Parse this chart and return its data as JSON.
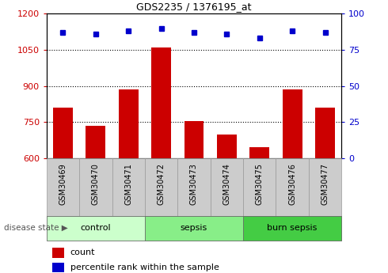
{
  "title": "GDS2235 / 1376195_at",
  "samples": [
    "GSM30469",
    "GSM30470",
    "GSM30471",
    "GSM30472",
    "GSM30473",
    "GSM30474",
    "GSM30475",
    "GSM30476",
    "GSM30477"
  ],
  "count_values": [
    810,
    735,
    885,
    1060,
    755,
    700,
    645,
    885,
    810
  ],
  "percentile_values": [
    87,
    86,
    88,
    90,
    87,
    86,
    83,
    88,
    87
  ],
  "groups": [
    {
      "label": "control",
      "start": 0,
      "end": 3,
      "color": "#ccffcc"
    },
    {
      "label": "sepsis",
      "start": 3,
      "end": 6,
      "color": "#88ee88"
    },
    {
      "label": "burn sepsis",
      "start": 6,
      "end": 9,
      "color": "#44cc44"
    }
  ],
  "ylim_left": [
    600,
    1200
  ],
  "ylim_right": [
    0,
    100
  ],
  "yticks_left": [
    600,
    750,
    900,
    1050,
    1200
  ],
  "yticks_right": [
    0,
    25,
    50,
    75,
    100
  ],
  "bar_color": "#cc0000",
  "dot_color": "#0000cc",
  "bar_width": 0.6,
  "disease_state_label": "disease state",
  "legend_count_label": "count",
  "legend_percentile_label": "percentile rank within the sample",
  "sample_box_color": "#cccccc",
  "gridline_color": "black",
  "gridline_ticks": [
    750,
    900,
    1050
  ]
}
